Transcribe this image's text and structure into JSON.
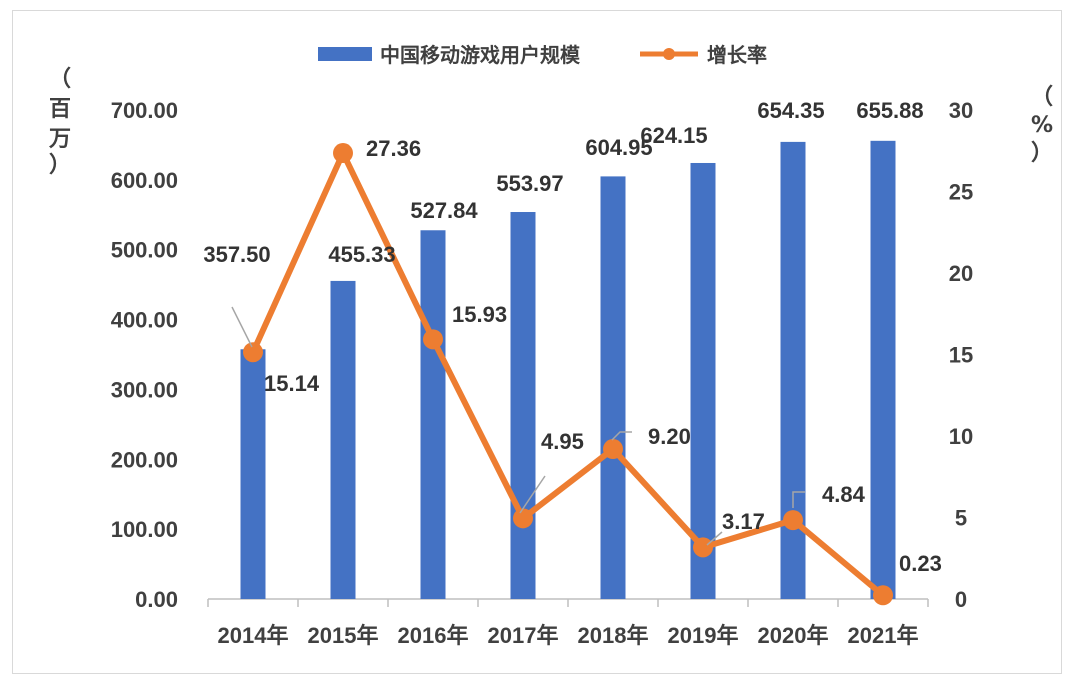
{
  "chart_data": {
    "type": "bar+line",
    "categories": [
      "2014年",
      "2015年",
      "2016年",
      "2017年",
      "2018年",
      "2019年",
      "2020年",
      "2021年"
    ],
    "series": [
      {
        "name": "中国移动游戏用户规模",
        "type": "bar",
        "axis": "left",
        "color": "#4472C4",
        "values": [
          357.5,
          455.33,
          527.84,
          553.97,
          604.95,
          624.15,
          654.35,
          655.88
        ],
        "labels": [
          "357.50",
          "455.33",
          "527.84",
          "553.97",
          "604.95",
          "624.15",
          "654.35",
          "655.88"
        ]
      },
      {
        "name": "增长率",
        "type": "line",
        "axis": "right",
        "color": "#ED7D31",
        "values": [
          15.14,
          27.36,
          15.93,
          4.95,
          9.2,
          3.17,
          4.84,
          0.23
        ],
        "labels": [
          "15.14",
          "27.36",
          "15.93",
          "4.95",
          "9.20",
          "3.17",
          "4.84",
          "0.23"
        ]
      }
    ],
    "y_left": {
      "label": [
        "（",
        "百",
        "万",
        "）"
      ],
      "ylim": [
        0,
        700
      ],
      "ticks": [
        "0.00",
        "100.00",
        "200.00",
        "300.00",
        "400.00",
        "500.00",
        "600.00",
        "700.00"
      ]
    },
    "y_right": {
      "label": [
        "（",
        "%",
        "）"
      ],
      "ylim": [
        0,
        30
      ],
      "ticks": [
        "0",
        "5",
        "10",
        "15",
        "20",
        "25",
        "30"
      ]
    },
    "legend_position": "top-center",
    "grid": false
  }
}
